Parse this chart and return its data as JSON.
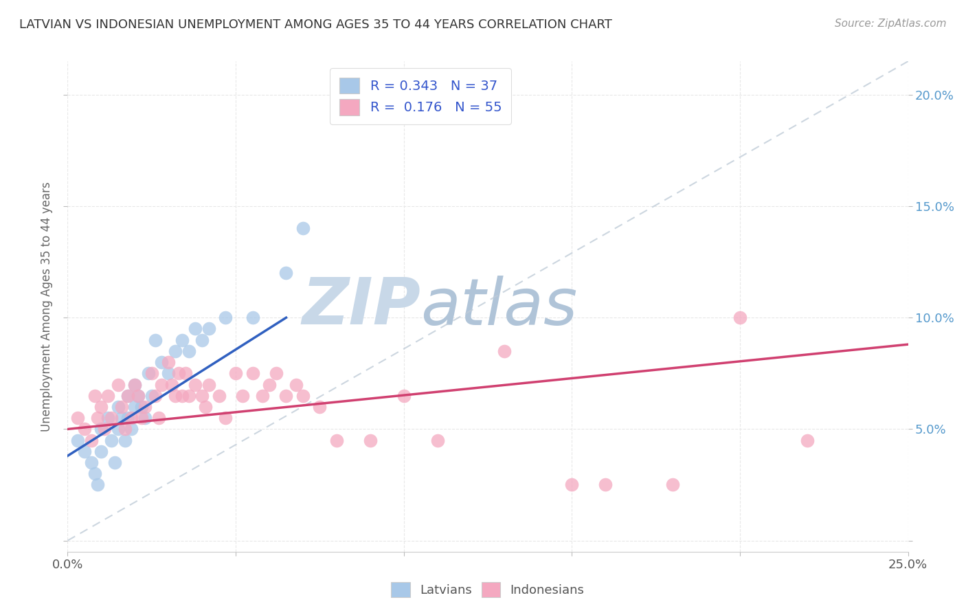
{
  "title": "LATVIAN VS INDONESIAN UNEMPLOYMENT AMONG AGES 35 TO 44 YEARS CORRELATION CHART",
  "source": "Source: ZipAtlas.com",
  "ylabel": "Unemployment Among Ages 35 to 44 years",
  "xlim": [
    0.0,
    0.25
  ],
  "ylim": [
    -0.005,
    0.215
  ],
  "latvian_R": 0.343,
  "latvian_N": 37,
  "indonesian_R": 0.176,
  "indonesian_N": 55,
  "latvian_color": "#a8c8e8",
  "indonesian_color": "#f4a8c0",
  "latvian_line_color": "#3060c0",
  "indonesian_line_color": "#d04070",
  "diagonal_line_color": "#c0ccd8",
  "watermark_zip_color": "#c8d8e8",
  "watermark_atlas_color": "#b8c8d8",
  "latvian_scatter_x": [
    0.003,
    0.005,
    0.007,
    0.008,
    0.009,
    0.01,
    0.01,
    0.012,
    0.013,
    0.014,
    0.015,
    0.015,
    0.016,
    0.017,
    0.018,
    0.018,
    0.019,
    0.02,
    0.02,
    0.021,
    0.022,
    0.023,
    0.024,
    0.025,
    0.026,
    0.028,
    0.03,
    0.032,
    0.034,
    0.036,
    0.038,
    0.04,
    0.042,
    0.047,
    0.055,
    0.065,
    0.07
  ],
  "latvian_scatter_y": [
    0.045,
    0.04,
    0.035,
    0.03,
    0.025,
    0.05,
    0.04,
    0.055,
    0.045,
    0.035,
    0.06,
    0.05,
    0.055,
    0.045,
    0.065,
    0.055,
    0.05,
    0.07,
    0.06,
    0.065,
    0.06,
    0.055,
    0.075,
    0.065,
    0.09,
    0.08,
    0.075,
    0.085,
    0.09,
    0.085,
    0.095,
    0.09,
    0.095,
    0.1,
    0.1,
    0.12,
    0.14
  ],
  "indonesian_scatter_x": [
    0.003,
    0.005,
    0.007,
    0.008,
    0.009,
    0.01,
    0.011,
    0.012,
    0.013,
    0.015,
    0.016,
    0.017,
    0.018,
    0.019,
    0.02,
    0.021,
    0.022,
    0.023,
    0.025,
    0.026,
    0.027,
    0.028,
    0.03,
    0.031,
    0.032,
    0.033,
    0.034,
    0.035,
    0.036,
    0.038,
    0.04,
    0.041,
    0.042,
    0.045,
    0.047,
    0.05,
    0.052,
    0.055,
    0.058,
    0.06,
    0.062,
    0.065,
    0.068,
    0.07,
    0.075,
    0.08,
    0.09,
    0.1,
    0.11,
    0.13,
    0.15,
    0.16,
    0.18,
    0.2,
    0.22
  ],
  "indonesian_scatter_y": [
    0.055,
    0.05,
    0.045,
    0.065,
    0.055,
    0.06,
    0.05,
    0.065,
    0.055,
    0.07,
    0.06,
    0.05,
    0.065,
    0.055,
    0.07,
    0.065,
    0.055,
    0.06,
    0.075,
    0.065,
    0.055,
    0.07,
    0.08,
    0.07,
    0.065,
    0.075,
    0.065,
    0.075,
    0.065,
    0.07,
    0.065,
    0.06,
    0.07,
    0.065,
    0.055,
    0.075,
    0.065,
    0.075,
    0.065,
    0.07,
    0.075,
    0.065,
    0.07,
    0.065,
    0.06,
    0.045,
    0.045,
    0.065,
    0.045,
    0.085,
    0.025,
    0.025,
    0.025,
    0.1,
    0.045
  ],
  "latvian_line_x": [
    0.0,
    0.065
  ],
  "latvian_line_y": [
    0.038,
    0.1
  ],
  "indonesian_line_x": [
    0.0,
    0.25
  ],
  "indonesian_line_y": [
    0.05,
    0.088
  ],
  "diag_line_x": [
    0.0,
    0.25
  ],
  "diag_line_y": [
    0.0,
    0.215
  ],
  "background_color": "#ffffff",
  "grid_color": "#e8e8e8",
  "grid_style": "--"
}
